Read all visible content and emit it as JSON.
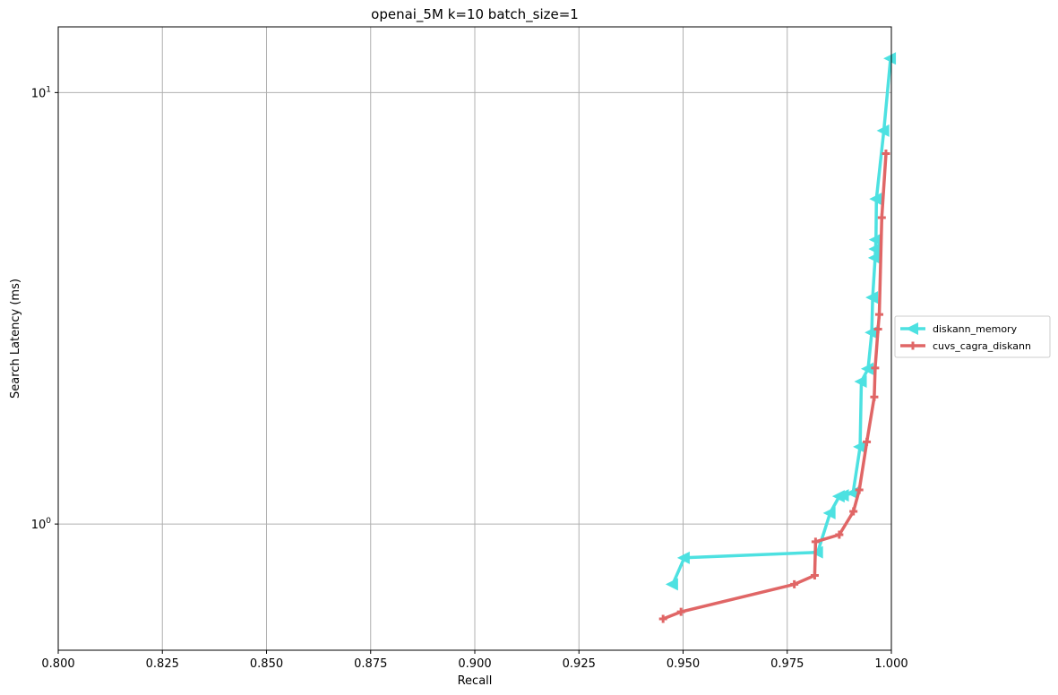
{
  "chart_data": {
    "type": "line",
    "title": "openai_5M k=10 batch_size=1",
    "xlabel": "Recall",
    "ylabel": "Search Latency (ms)",
    "xlim": [
      0.8,
      1.0
    ],
    "ylim": [
      0.51,
      14.2
    ],
    "yscale": "log",
    "grid": true,
    "legend": "outside-right",
    "xticks": [
      "0.800",
      "0.825",
      "0.850",
      "0.875",
      "0.900",
      "0.925",
      "0.950",
      "0.975",
      "1.000"
    ],
    "yticks": [
      {
        "value": 1,
        "base": "10",
        "exp": "0"
      },
      {
        "value": 10,
        "base": "10",
        "exp": "1"
      }
    ],
    "series": [
      {
        "name": "diskann_memory",
        "color": "#4de1e1",
        "marker": "triangle-left",
        "x": [
          0.9475,
          0.9503,
          0.9823,
          0.9853,
          0.9875,
          0.9885,
          0.9908,
          0.9925,
          0.9928,
          0.9944,
          0.9953,
          0.9955,
          0.9961,
          0.9962,
          0.9963,
          0.9964,
          0.9982,
          0.9998
        ],
        "y": [
          0.725,
          0.835,
          0.86,
          1.06,
          1.16,
          1.165,
          1.18,
          1.51,
          2.14,
          2.29,
          2.78,
          3.35,
          4.14,
          4.34,
          4.56,
          5.67,
          8.16,
          12.0
        ]
      },
      {
        "name": "cuvs_cagra_diskann",
        "color": "#e06666",
        "marker": "plus",
        "x": [
          0.9452,
          0.9495,
          0.9767,
          0.9816,
          0.9818,
          0.9875,
          0.9909,
          0.9923,
          0.9941,
          0.9959,
          0.9961,
          0.9968,
          0.9971,
          0.9977,
          0.9987
        ],
        "y": [
          0.603,
          0.626,
          0.725,
          0.76,
          0.91,
          0.945,
          1.07,
          1.2,
          1.55,
          1.97,
          2.3,
          2.83,
          3.06,
          5.13,
          7.22
        ]
      }
    ]
  }
}
